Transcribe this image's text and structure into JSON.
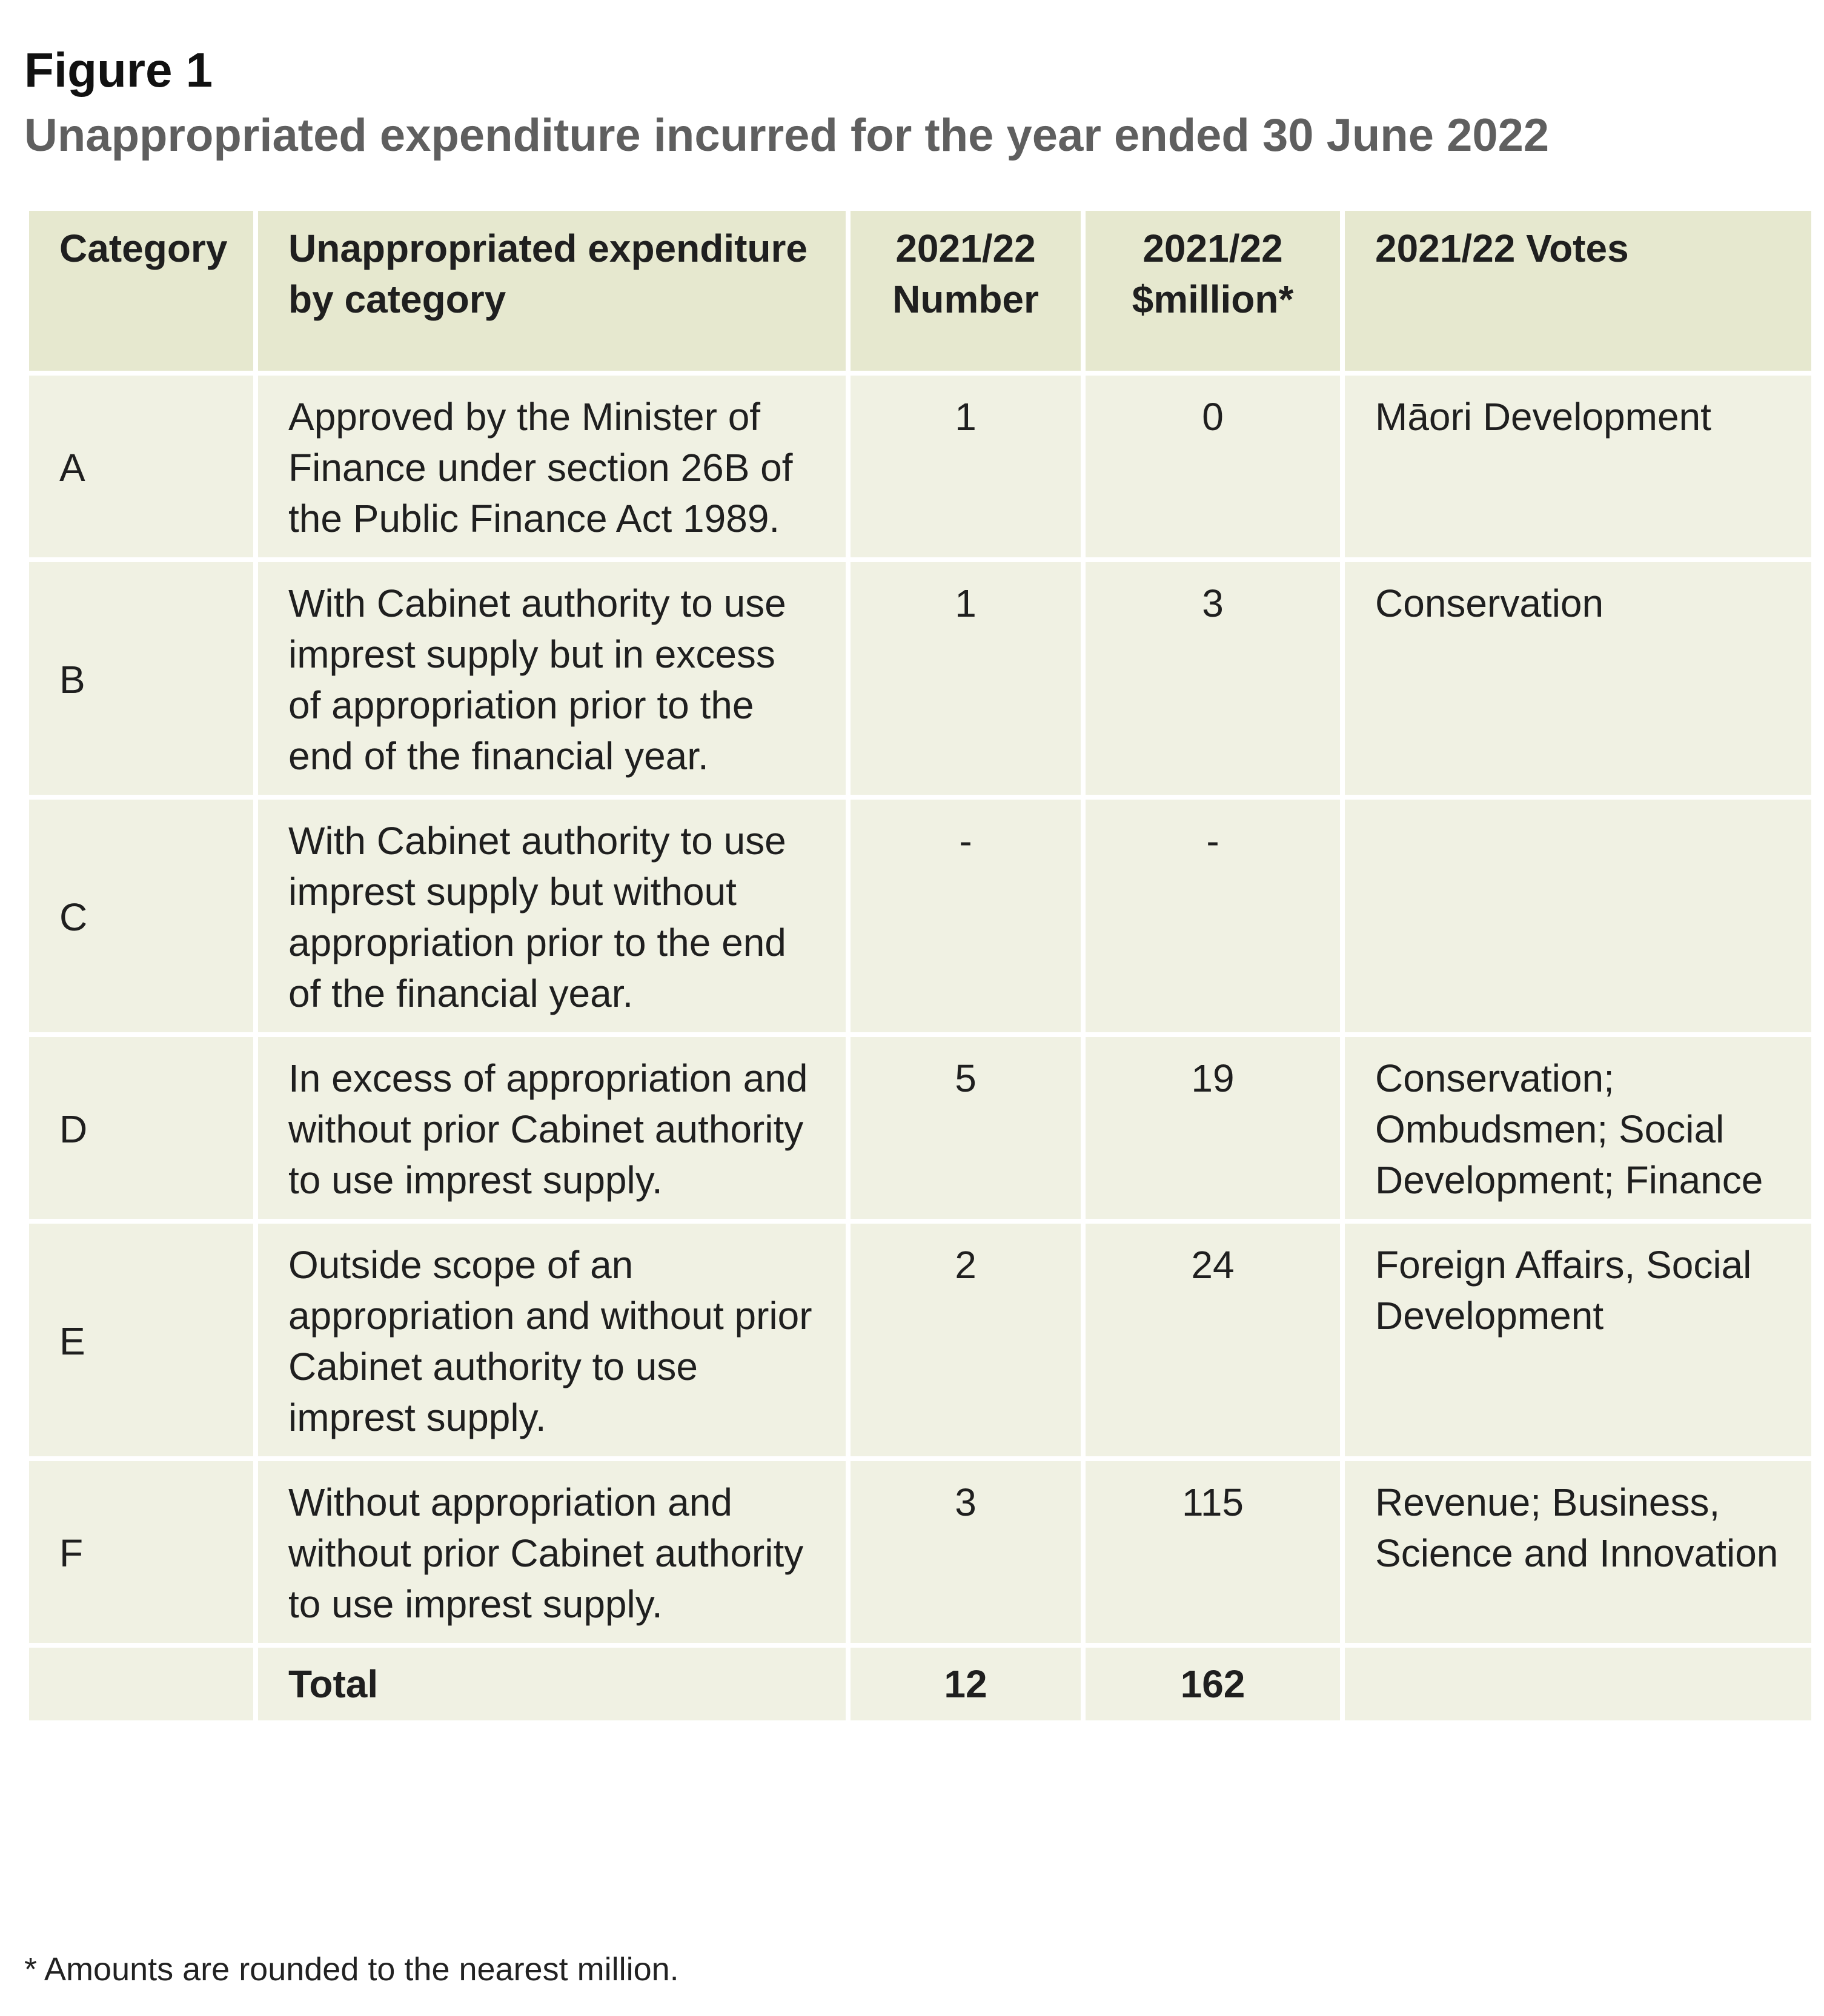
{
  "figure": {
    "label": "Figure 1",
    "title": "Unappropriated expenditure incurred for the year ended 30 June 2022"
  },
  "table": {
    "headers": {
      "category": "Category",
      "description": "Unappropriated expenditure by category",
      "number": "2021/22 Number",
      "million": "2021/22 $million*",
      "votes": "2021/22 Votes"
    },
    "rows": [
      {
        "category": "A",
        "description": "Approved by the Minister of Finance under section 26B of the Public Finance Act 1989.",
        "number": "1",
        "million": "0",
        "votes": "Māori Development"
      },
      {
        "category": "B",
        "description": "With Cabinet authority to use imprest supply but in excess of appropriation prior to the end of the financial year.",
        "number": "1",
        "million": "3",
        "votes": "Conservation"
      },
      {
        "category": "C",
        "description": "With Cabinet authority to use imprest supply but without appropriation prior to the end of the financial year.",
        "number": "-",
        "million": "-",
        "votes": ""
      },
      {
        "category": "D",
        "description": "In excess of appropriation and without prior Cabinet authority to use imprest supply.",
        "number": "5",
        "million": "19",
        "votes": "Conservation; Ombudsmen; Social Development; Finance"
      },
      {
        "category": "E",
        "description": "Outside scope of an appropriation and without prior Cabinet authority to use imprest supply.",
        "number": "2",
        "million": "24",
        "votes": "Foreign Affairs, Social Development"
      },
      {
        "category": "F",
        "description": "Without appropriation and without prior Cabinet authority to use imprest supply.",
        "number": "3",
        "million": "115",
        "votes": "Revenue; Business, Science and Innovation"
      }
    ],
    "total": {
      "label": "Total",
      "number": "12",
      "million": "162"
    }
  },
  "footnote": "* Amounts are rounded to the nearest million."
}
